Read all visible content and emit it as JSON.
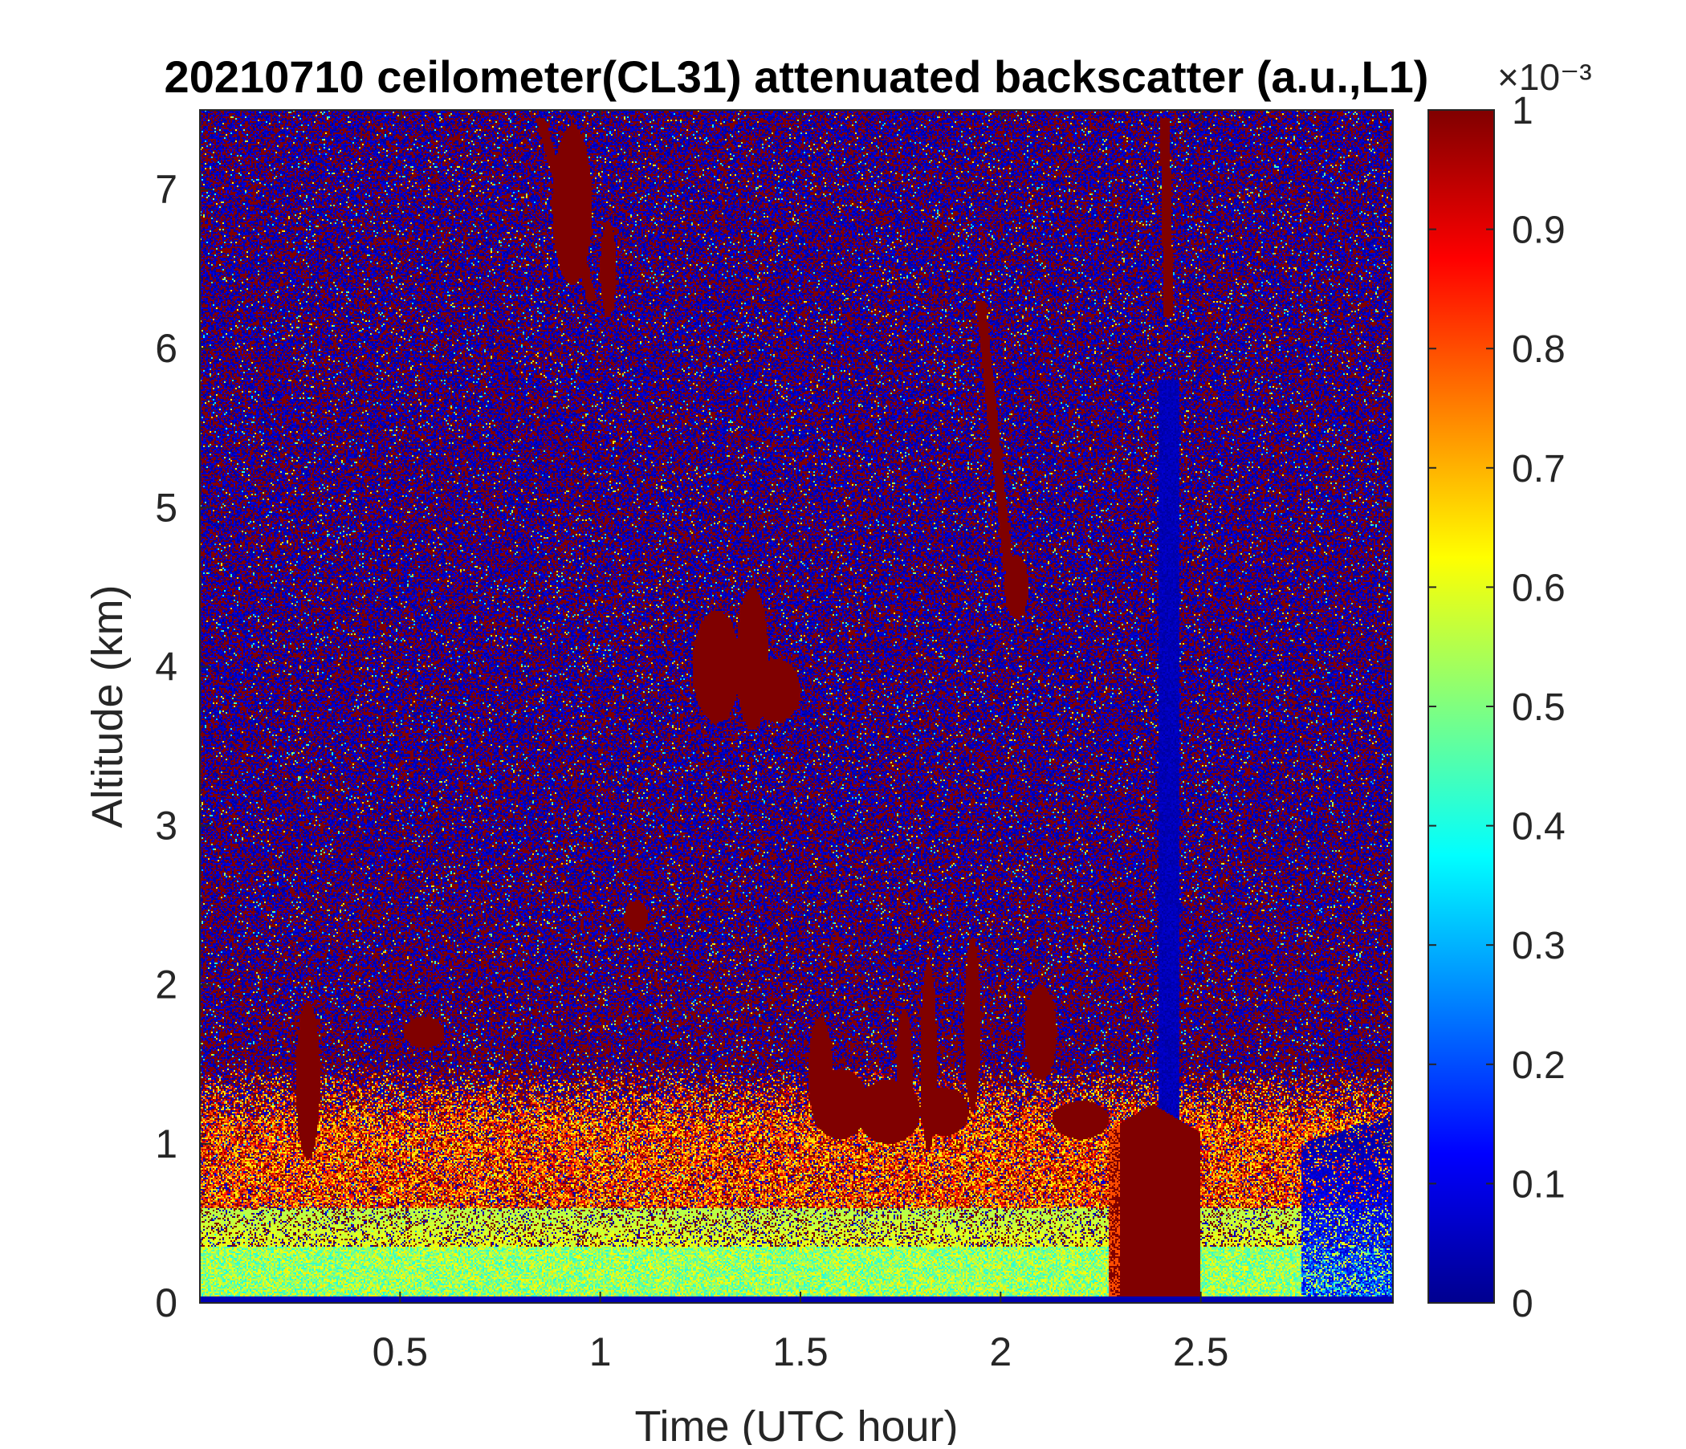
{
  "chart_data": {
    "type": "heatmap",
    "title": "20210710 ceilometer(CL31) attenuated backscatter (a.u.,L1)",
    "xlabel": "Time (UTC hour)",
    "ylabel": "Altitude (km)",
    "xlim": [
      0,
      2.98
    ],
    "ylim": [
      0,
      7.5
    ],
    "x_ticks": [
      0.5,
      1,
      1.5,
      2,
      2.5
    ],
    "x_tick_labels": [
      "0.5",
      "1",
      "1.5",
      "2",
      "2.5"
    ],
    "y_ticks": [
      0,
      1,
      2,
      3,
      4,
      5,
      6,
      7
    ],
    "y_tick_labels": [
      "0",
      "1",
      "2",
      "3",
      "4",
      "5",
      "6",
      "7"
    ],
    "colorbar": {
      "colormap": "jet",
      "range": [
        0,
        1
      ],
      "ticks": [
        0,
        0.1,
        0.2,
        0.3,
        0.4,
        0.5,
        0.6,
        0.7,
        0.8,
        0.9,
        1
      ],
      "tick_labels": [
        "0",
        "0.1",
        "0.2",
        "0.3",
        "0.4",
        "0.5",
        "0.6",
        "0.7",
        "0.8",
        "0.9",
        "1"
      ],
      "exponent_label": "×10⁻³"
    },
    "grid": false,
    "features": {
      "surface_layer": {
        "top_km": 0.6,
        "value": 0.55
      },
      "aerosol_mix_layer": {
        "top_km": 1.1,
        "value": 0.75
      },
      "blank_column": {
        "time_hour": 2.42,
        "from_km": 1.0,
        "to_km": 5.8,
        "value": 0.03
      },
      "precip_column": {
        "from_hour": 2.27,
        "to_hour": 2.5,
        "from_km": 0,
        "to_km": 1.25,
        "value": 1.0
      },
      "clear_region": {
        "from_hour": 2.75,
        "max_km": 1.0,
        "value": 0.08
      },
      "cloud_patches": [
        {
          "t": 0.27,
          "z": 1.4,
          "w": 0.03,
          "h": 0.5
        },
        {
          "t": 0.56,
          "z": 1.7,
          "w": 0.05,
          "h": 0.1
        },
        {
          "t": 1.09,
          "z": 2.43,
          "w": 0.03,
          "h": 0.1
        },
        {
          "t": 1.29,
          "z": 4.0,
          "w": 0.06,
          "h": 0.35
        },
        {
          "t": 1.38,
          "z": 4.05,
          "w": 0.04,
          "h": 0.45
        },
        {
          "t": 1.44,
          "z": 3.85,
          "w": 0.06,
          "h": 0.2
        },
        {
          "t": 1.55,
          "z": 1.45,
          "w": 0.03,
          "h": 0.35
        },
        {
          "t": 1.6,
          "z": 1.25,
          "w": 0.07,
          "h": 0.22
        },
        {
          "t": 1.72,
          "z": 1.2,
          "w": 0.08,
          "h": 0.2
        },
        {
          "t": 1.76,
          "z": 1.45,
          "w": 0.02,
          "h": 0.4
        },
        {
          "t": 1.82,
          "z": 1.55,
          "w": 0.02,
          "h": 0.6
        },
        {
          "t": 1.86,
          "z": 1.2,
          "w": 0.06,
          "h": 0.15
        },
        {
          "t": 1.93,
          "z": 1.75,
          "w": 0.02,
          "h": 0.55
        },
        {
          "t": 2.04,
          "z": 4.5,
          "w": 0.03,
          "h": 0.2
        },
        {
          "t": 2.1,
          "z": 1.7,
          "w": 0.04,
          "h": 0.3
        },
        {
          "t": 2.2,
          "z": 1.15,
          "w": 0.07,
          "h": 0.12
        },
        {
          "t": 0.93,
          "z": 6.9,
          "w": 0.05,
          "h": 0.5
        },
        {
          "t": 1.02,
          "z": 6.5,
          "w": 0.02,
          "h": 0.3
        }
      ],
      "fall_streaks": [
        {
          "t0": 0.85,
          "z0": 7.45,
          "t1": 0.98,
          "z1": 6.3
        },
        {
          "t0": 1.95,
          "z0": 6.3,
          "t1": 2.02,
          "z1": 4.6
        },
        {
          "t0": 2.41,
          "z0": 7.45,
          "t1": 2.42,
          "z1": 6.2
        }
      ]
    }
  }
}
